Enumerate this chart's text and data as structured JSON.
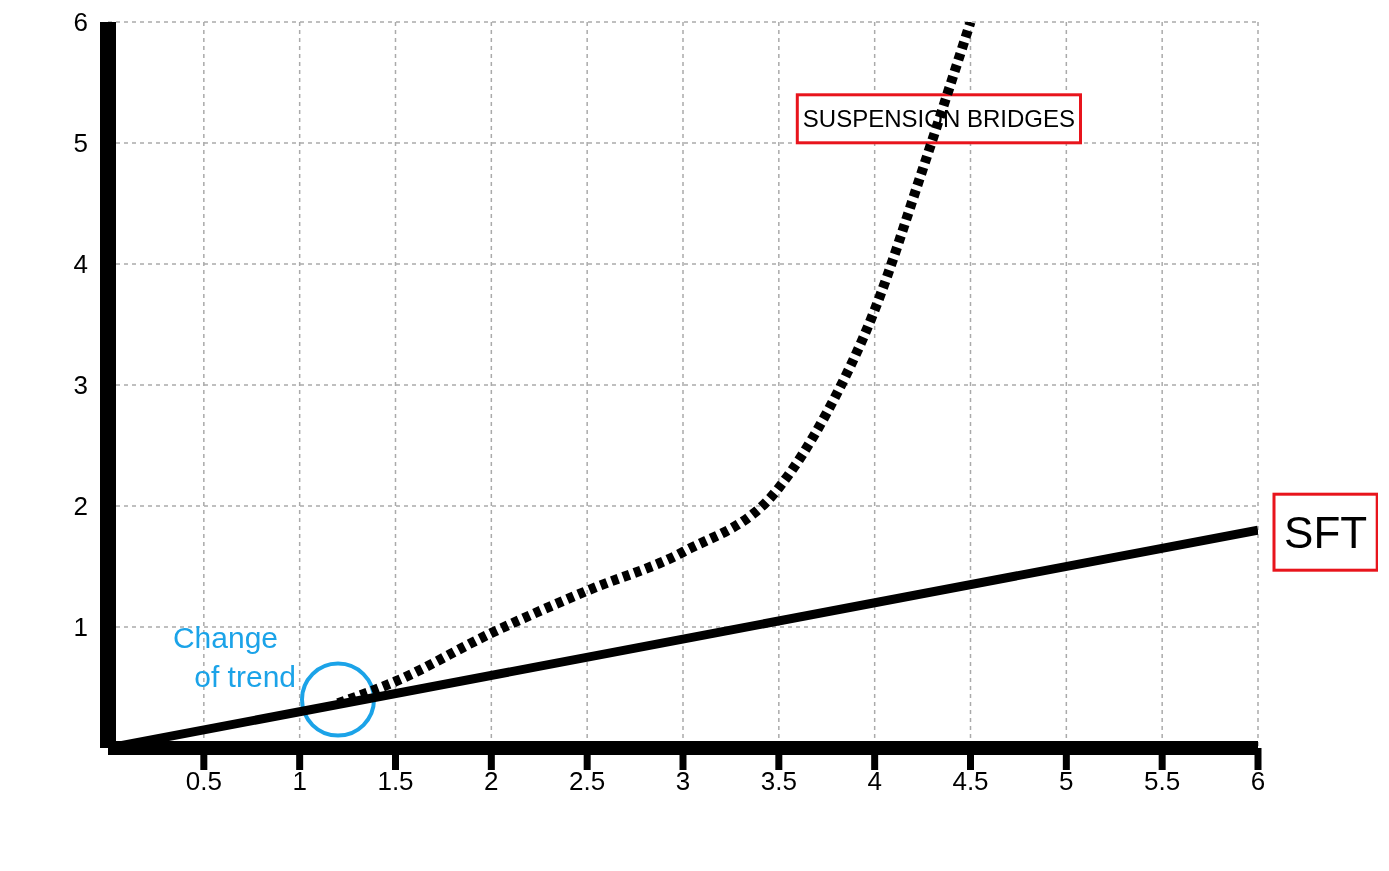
{
  "chart_data": {
    "type": "line",
    "xlim": [
      0,
      6
    ],
    "xticks": [
      0.5,
      1,
      1.5,
      2,
      2.5,
      3,
      3.5,
      4,
      4.5,
      5,
      5.5,
      6
    ],
    "ylim": [
      0,
      6
    ],
    "yticks": [
      1,
      2,
      3,
      4,
      5,
      6
    ],
    "grid": true,
    "marker": "none",
    "series": [
      {
        "name": "SUSPENSION BRIDGES",
        "color": "#000000",
        "line_style": "dotted",
        "x": [
          1.2,
          1.5,
          2,
          2.5,
          3,
          3.5,
          3.75,
          4,
          4.25,
          4.5
        ],
        "values": [
          0.37,
          0.55,
          0.95,
          1.3,
          1.62,
          2.15,
          2.77,
          3.62,
          4.78,
          6
        ]
      },
      {
        "name": "SFT",
        "color": "#000000",
        "line_style": "solid",
        "x": [
          0,
          6
        ],
        "values": [
          0,
          1.8
        ]
      }
    ],
    "annotations": [
      {
        "text": "Change of trend",
        "x": 1.2,
        "y": 0.4
      }
    ]
  }
}
